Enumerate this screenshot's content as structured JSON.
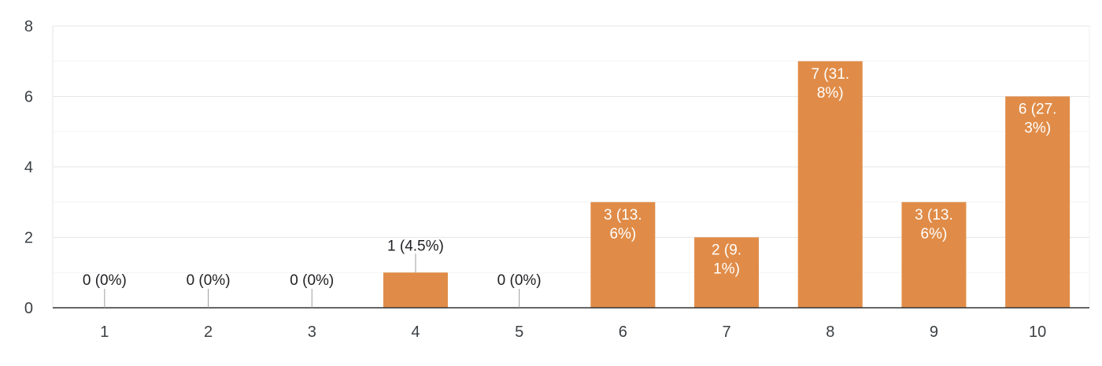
{
  "chart_data": {
    "type": "bar",
    "categories": [
      "1",
      "2",
      "3",
      "4",
      "5",
      "6",
      "7",
      "8",
      "9",
      "10"
    ],
    "values": [
      0,
      0,
      0,
      1,
      0,
      3,
      2,
      7,
      3,
      6
    ],
    "percent_labels": [
      "0%",
      "0%",
      "0%",
      "4.5%",
      "0%",
      "13.6%",
      "9.1%",
      "31.8%",
      "13.6%",
      "27.3%"
    ],
    "data_labels": [
      [
        "0 (0%)"
      ],
      [
        "0 (0%)"
      ],
      [
        "0 (0%)"
      ],
      [
        "1 (4.5%)"
      ],
      [
        "0 (0%)"
      ],
      [
        "3 (13.",
        "6%)"
      ],
      [
        "2 (9.",
        "1%)"
      ],
      [
        "7 (31.",
        "8%)"
      ],
      [
        "3 (13.",
        "6%)"
      ],
      [
        "6 (27.",
        "3%)"
      ]
    ],
    "y_ticks": [
      "0",
      "2",
      "4",
      "6",
      "8"
    ],
    "ylim": [
      0,
      8
    ],
    "bar_color": "#e08c48",
    "grid": true,
    "title": "",
    "xlabel": "",
    "ylabel": ""
  }
}
